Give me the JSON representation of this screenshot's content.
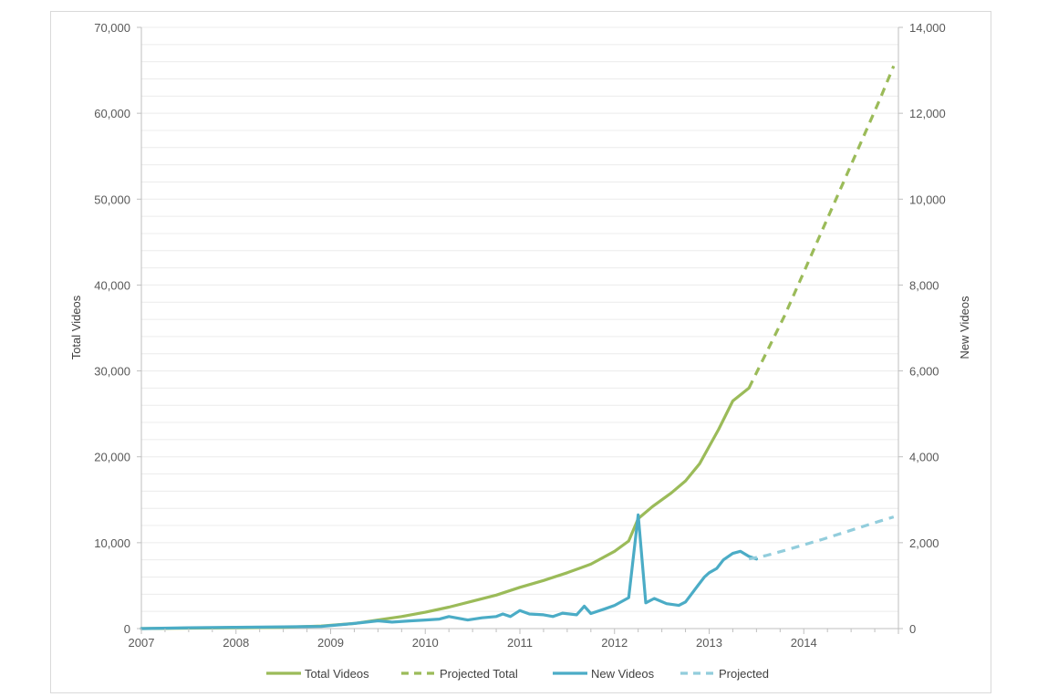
{
  "chart_data": {
    "type": "line",
    "x_axis": {
      "min": 2007,
      "max": 2015,
      "tick_labels": [
        "2007",
        "2008",
        "2009",
        "2010",
        "2011",
        "2012",
        "2013",
        "2014"
      ]
    },
    "y_left": {
      "label": "Total Videos",
      "min": 0,
      "max": 70000,
      "tick_labels": [
        "0",
        "10,000",
        "20,000",
        "30,000",
        "40,000",
        "50,000",
        "60,000",
        "70,000"
      ]
    },
    "y_right": {
      "label": "New Videos",
      "min": 0,
      "max": 14000,
      "tick_labels": [
        "0",
        "2,000",
        "4,000",
        "6,000",
        "8,000",
        "10,000",
        "12,000",
        "14,000"
      ]
    },
    "grid": "horizontal",
    "legend_position": "bottom",
    "colors": {
      "total": "#9bbb59",
      "new": "#4bacc6",
      "projected_total": "#9bbb59",
      "projected_new": "#92cddc"
    },
    "series": [
      {
        "name": "Total Videos",
        "axis": "left",
        "style": "solid",
        "x": [
          2007.0,
          2007.5,
          2008.0,
          2008.5,
          2008.9,
          2009.25,
          2009.5,
          2009.75,
          2010.0,
          2010.25,
          2010.5,
          2010.75,
          2011.0,
          2011.25,
          2011.5,
          2011.75,
          2012.0,
          2012.15,
          2012.25,
          2012.4,
          2012.6,
          2012.75,
          2012.9,
          2013.0,
          2013.1,
          2013.25,
          2013.42
        ],
        "y": [
          0,
          50,
          100,
          150,
          300,
          600,
          1000,
          1400,
          1900,
          2500,
          3200,
          3900,
          4800,
          5600,
          6500,
          7500,
          9000,
          10200,
          12800,
          14200,
          15800,
          17200,
          19200,
          21200,
          23200,
          26500,
          28000
        ]
      },
      {
        "name": "Projected Total",
        "axis": "left",
        "style": "dashed",
        "x": [
          2013.42,
          2013.6,
          2013.8,
          2014.0,
          2014.2,
          2014.4,
          2014.6,
          2014.8,
          2014.95
        ],
        "y": [
          28000,
          32000,
          36500,
          41500,
          46500,
          51500,
          56500,
          61500,
          65500
        ]
      },
      {
        "name": "New Videos",
        "axis": "right",
        "style": "solid",
        "x": [
          2007.0,
          2007.5,
          2008.0,
          2008.5,
          2008.9,
          2009.25,
          2009.5,
          2009.65,
          2009.85,
          2010.0,
          2010.15,
          2010.25,
          2010.45,
          2010.6,
          2010.75,
          2010.82,
          2010.9,
          2011.0,
          2011.1,
          2011.25,
          2011.35,
          2011.45,
          2011.6,
          2011.68,
          2011.75,
          2011.9,
          2012.0,
          2012.15,
          2012.25,
          2012.33,
          2012.42,
          2012.55,
          2012.68,
          2012.75,
          2012.88,
          2012.95,
          2013.0,
          2013.08,
          2013.15,
          2013.25,
          2013.33,
          2013.42,
          2013.5
        ],
        "y": [
          0,
          20,
          30,
          40,
          50,
          120,
          180,
          150,
          180,
          200,
          220,
          280,
          200,
          250,
          280,
          340,
          280,
          420,
          340,
          320,
          280,
          360,
          320,
          520,
          350,
          460,
          540,
          720,
          2650,
          600,
          700,
          580,
          540,
          620,
          1000,
          1200,
          1300,
          1400,
          1600,
          1750,
          1800,
          1680,
          1620
        ]
      },
      {
        "name": "Projected",
        "axis": "right",
        "style": "dashed",
        "x": [
          2013.42,
          2013.6,
          2013.8,
          2014.0,
          2014.2,
          2014.4,
          2014.6,
          2014.8,
          2014.95
        ],
        "y": [
          1620,
          1700,
          1820,
          1950,
          2080,
          2220,
          2360,
          2500,
          2600
        ]
      }
    ]
  }
}
